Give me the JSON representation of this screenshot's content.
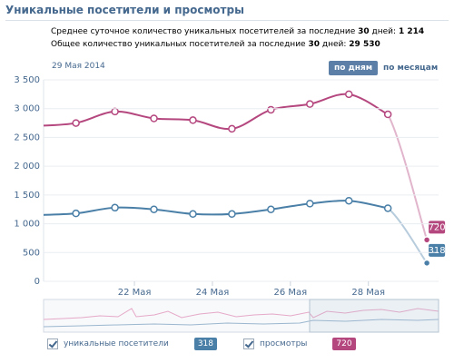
{
  "header": {
    "title": "Уникальные посетители и просмотры",
    "stats": [
      {
        "before": "Среднее суточное количество уникальных посетителей за последние",
        "days": "30",
        "after": "дней:",
        "value": "1 214"
      },
      {
        "before": "Общее количество уникальных посетителей за последние",
        "days": "30",
        "after": "дней:",
        "value": "29 530"
      }
    ],
    "date": "29 Мая 2014",
    "toggle": [
      "по дням",
      "по месяцам"
    ]
  },
  "chart_data": {
    "type": "line",
    "x": [
      19.5,
      20.5,
      21.5,
      22.5,
      23.5,
      24.5,
      25.5,
      26.5,
      27.5,
      28.5,
      29.5
    ],
    "xlim": [
      19.67,
      29.8
    ],
    "xticks": [
      {
        "value": 22,
        "label": "22 Мая"
      },
      {
        "value": 24,
        "label": "24 Мая"
      },
      {
        "value": 26,
        "label": "26 Мая"
      },
      {
        "value": 28,
        "label": "28 Мая"
      }
    ],
    "ylim": [
      0,
      3500
    ],
    "yticks": [
      0,
      500,
      {
        "value": 1000,
        "label": "1 000"
      },
      {
        "value": 1500,
        "label": "1 500"
      },
      {
        "value": 2000,
        "label": "2 000"
      },
      {
        "value": 2500,
        "label": "2 500"
      },
      {
        "value": 3000,
        "label": "3 000"
      },
      {
        "value": 3500,
        "label": "3 500"
      }
    ],
    "grid": true,
    "series": [
      {
        "name": "уникальные посетители",
        "color": "#4a7fa7",
        "values": [
          1150,
          1180,
          1280,
          1250,
          1170,
          1170,
          1250,
          1350,
          1400,
          1270,
          318
        ]
      },
      {
        "name": "просмотры",
        "color": "#b5477f",
        "values": [
          2700,
          2750,
          2950,
          2830,
          2800,
          2650,
          2980,
          3080,
          3250,
          2900,
          720
        ]
      }
    ]
  }
}
